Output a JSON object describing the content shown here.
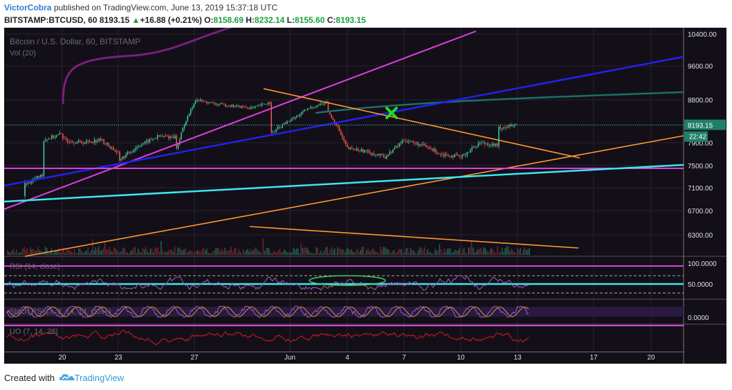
{
  "header": {
    "author": "VictorCobra",
    "published_text": "published on TradingView.com, June 13, 2019 15:37:18 UTC",
    "symbol": "BITSTAMP:BTCUSD, 60",
    "last": "8193.15",
    "change_arrow": "▲",
    "change": "+16.88 (+0.21%)",
    "o_label": "O:",
    "o_value": "8158.69",
    "h_label": "H:",
    "h_value": "8232.14",
    "l_label": "L:",
    "l_value": "8155.60",
    "c_label": "C:",
    "c_value": "8193.15"
  },
  "footer": {
    "created_with": "Created with",
    "brand": "TradingView",
    "logo_icon": "tradingview-cloud-icon"
  },
  "chart_data": {
    "type": "line",
    "subtype": "candlestick",
    "title": "Bitcoin / U.S. Dollar, 60, BITSTAMP",
    "volume_label": "Vol (20)",
    "price_axis": {
      "ticks": [
        "10400.00",
        "9600.00",
        "8800.00",
        "8200.00",
        "7900.00",
        "7500.00",
        "7100.00",
        "6700.00",
        "6300.00"
      ],
      "tick_values": [
        10400,
        9600,
        8800,
        8200,
        7900,
        7500,
        7100,
        6700,
        6300
      ],
      "current_price_label": "8193.15",
      "countdown_label": "22:42"
    },
    "x_axis": {
      "labels": [
        "20",
        "23",
        "27",
        "Jun",
        "4",
        "7",
        "10",
        "13",
        "17",
        "20"
      ]
    },
    "price_path": [
      [
        "May 18",
        7200
      ],
      [
        "May 18",
        6950
      ],
      [
        "May 18",
        7150
      ],
      [
        "May 19",
        7350
      ],
      [
        "May 19",
        7950
      ],
      [
        "May 20",
        8050
      ],
      [
        "May 20",
        7950
      ],
      [
        "May 21",
        7900
      ],
      [
        "May 22",
        7950
      ],
      [
        "May 23",
        7700
      ],
      [
        "May 23",
        7600
      ],
      [
        "May 24",
        7850
      ],
      [
        "May 25",
        8000
      ],
      [
        "May 26",
        8000
      ],
      [
        "May 26",
        7800
      ],
      [
        "May 27",
        8800
      ],
      [
        "May 28",
        8700
      ],
      [
        "May 29",
        8650
      ],
      [
        "May 30",
        8600
      ],
      [
        "May 31",
        8750
      ],
      [
        "May 31",
        8050
      ],
      [
        "Jun 1",
        8300
      ],
      [
        "Jun 2",
        8600
      ],
      [
        "Jun 3",
        8750
      ],
      [
        "Jun 3",
        8500
      ],
      [
        "Jun 4",
        7800
      ],
      [
        "Jun 5",
        7750
      ],
      [
        "Jun 6",
        7650
      ],
      [
        "Jun 7",
        7950
      ],
      [
        "Jun 8",
        7850
      ],
      [
        "Jun 9",
        7700
      ],
      [
        "Jun 10",
        7650
      ],
      [
        "Jun 11",
        7900
      ],
      [
        "Jun 12",
        7850
      ],
      [
        "Jun 12",
        8150
      ],
      [
        "Jun 13",
        8193
      ]
    ],
    "drawings": [
      {
        "color": "#e040e0",
        "kind": "trendline"
      },
      {
        "color": "#2222ee",
        "kind": "trendline"
      },
      {
        "color": "#ff9a2e",
        "kind": "trendline"
      },
      {
        "color": "#ff9a2e",
        "kind": "trendline"
      },
      {
        "color": "#ff9a2e",
        "kind": "trendline"
      },
      {
        "color": "#e040e0",
        "kind": "horizontal",
        "value": 7460
      },
      {
        "color": "#3de8ee",
        "kind": "trendline"
      },
      {
        "color": "#1d6f6a",
        "kind": "moving-average"
      },
      {
        "color": "#7a1f7a",
        "kind": "moving-average"
      },
      {
        "color": "#22dd22",
        "kind": "marker-x"
      }
    ],
    "rsi": {
      "label": "RSI (14, close)",
      "ticks": [
        "100.0000",
        "50.0000"
      ],
      "colors": {
        "line": "#a560c0",
        "bands": "#e040e0",
        "mid": "#3de8ee",
        "ellipse": "#3fcf5f"
      }
    },
    "stoch": {
      "label": "Stoch RSI (3, 3, 14, 14, close)",
      "ticks": [
        "0.0000"
      ],
      "colors": {
        "k": "#a560c0",
        "d": "#d99a3a",
        "band": "#2a1a40"
      }
    },
    "uo": {
      "label": "UO (7, 14, 28)",
      "colors": {
        "line": "#d02020",
        "level": "#e040e0"
      }
    },
    "grid": true,
    "colors": {
      "up": "#2ecc9a",
      "down": "#ef5350",
      "background": "#130f18",
      "axis": "#e0e0e0"
    }
  }
}
